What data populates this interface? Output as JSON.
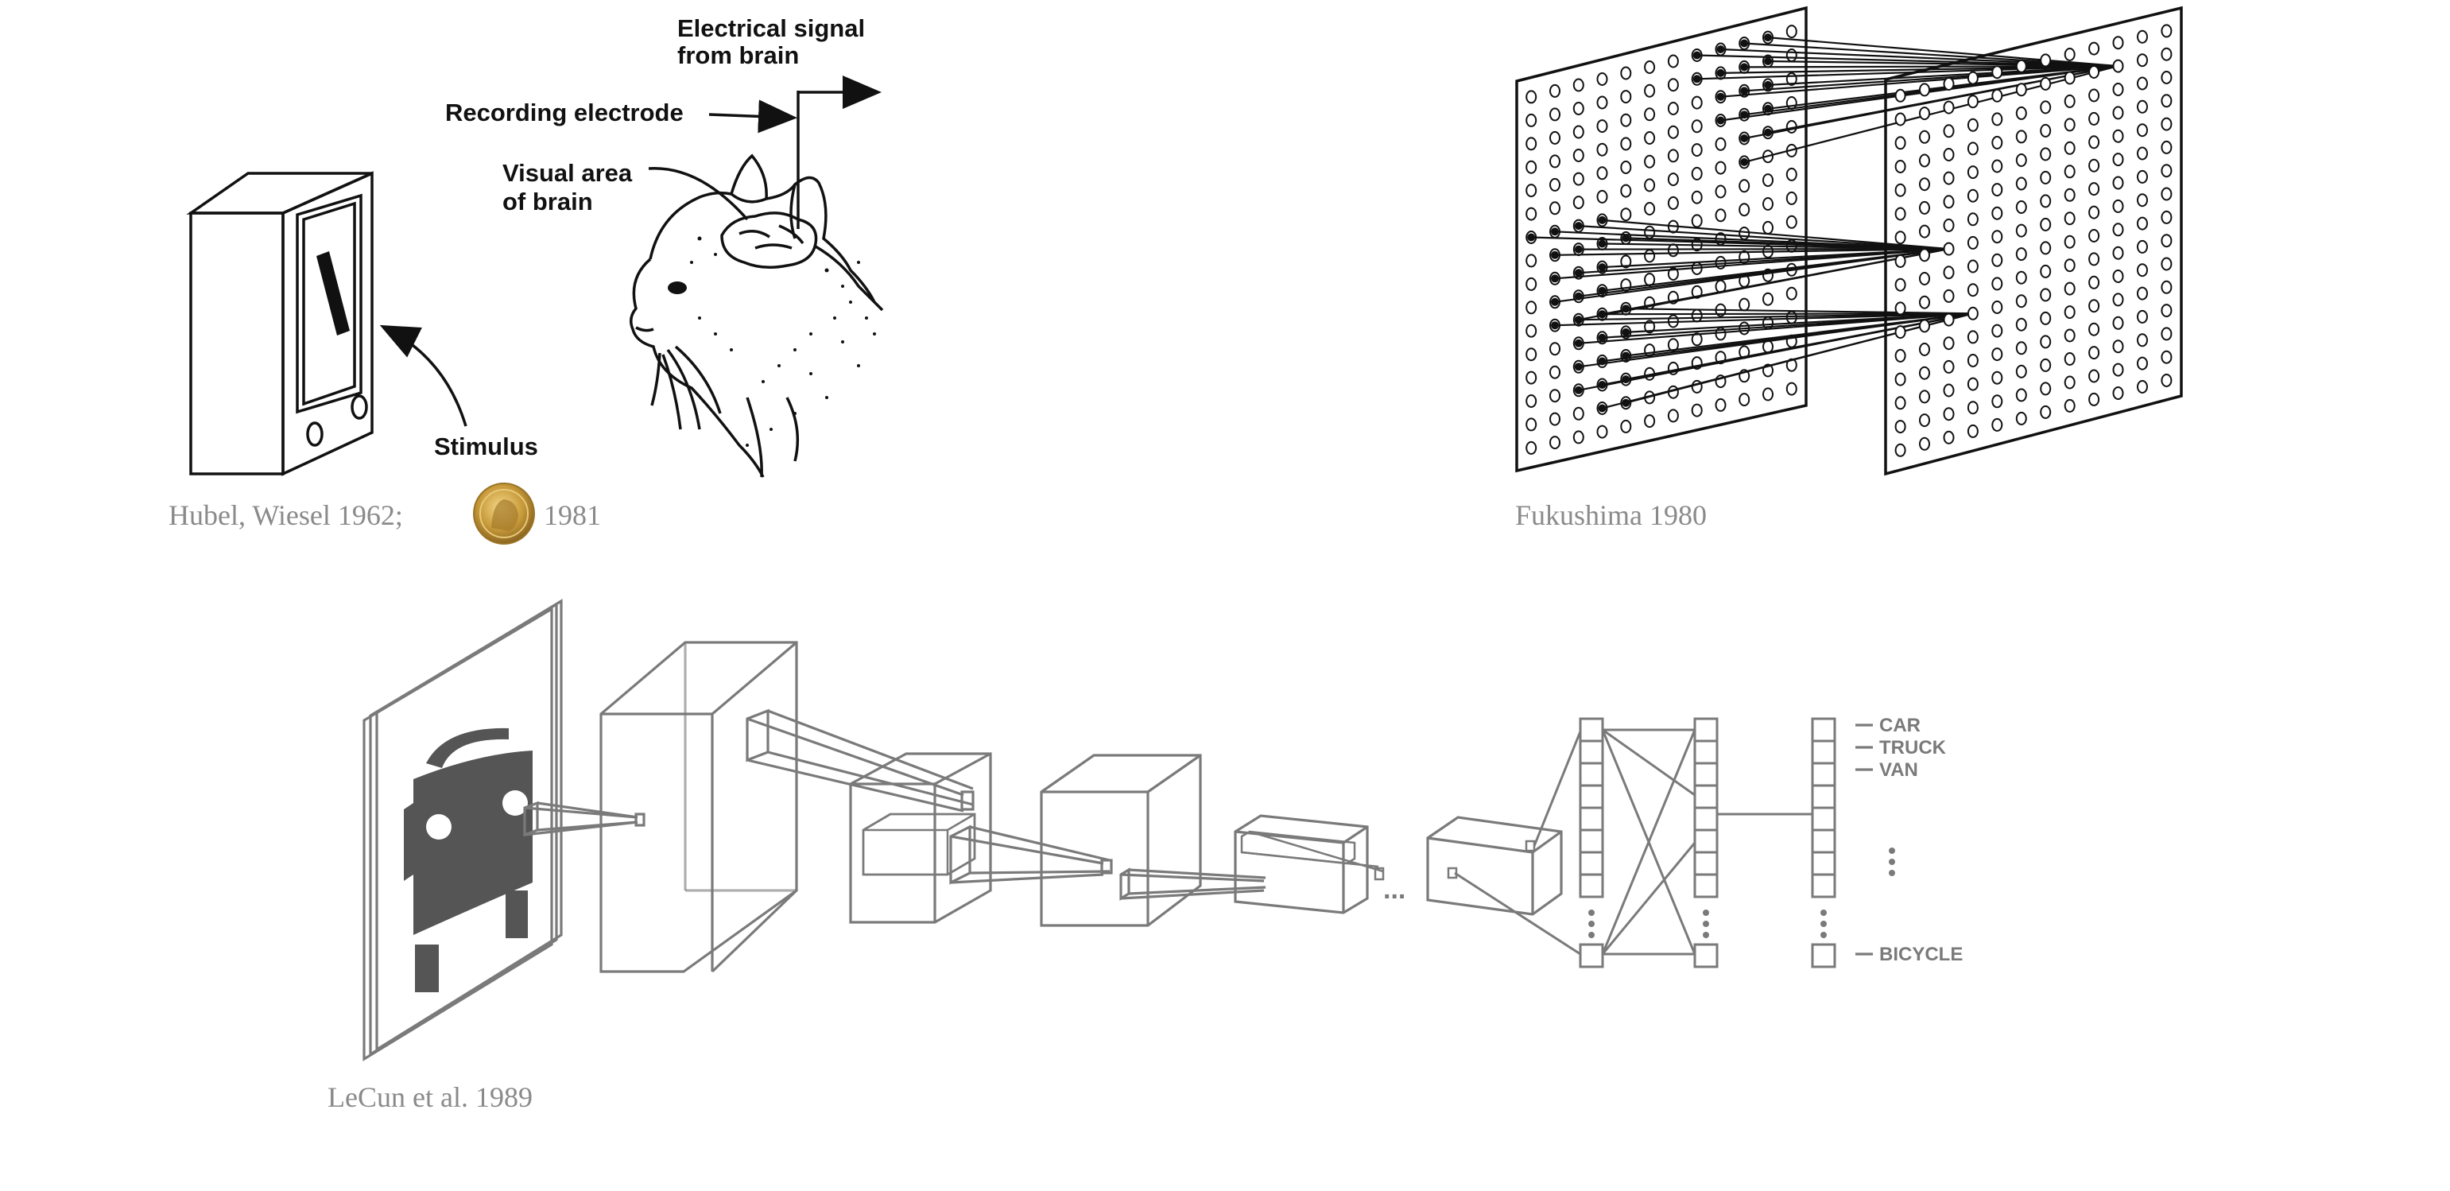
{
  "hubel": {
    "labels": {
      "electrical_signal_line1": "Electrical signal",
      "electrical_signal_line2": "from brain",
      "recording_electrode": "Recording electrode",
      "visual_area_line1": "Visual area",
      "visual_area_line2": "of brain",
      "stimulus": "Stimulus"
    },
    "caption_prefix": "Hubel, Wiesel 1962;",
    "caption_year": "1981",
    "medal_icon": "nobel-medal-icon"
  },
  "fukushima": {
    "caption": "Fukushima 1980",
    "grid_rows": 16,
    "grid_cols": 12
  },
  "lecun": {
    "caption": "LeCun et al. 1989",
    "ellipsis": "...",
    "outputs": [
      "CAR",
      "TRUCK",
      "VAN",
      "BICYCLE"
    ]
  },
  "colors": {
    "caption_gray": "#8a8a8a",
    "diagram_gray": "#7a7a7a",
    "ink": "#111111",
    "medal_gold": "#c89a3a"
  }
}
